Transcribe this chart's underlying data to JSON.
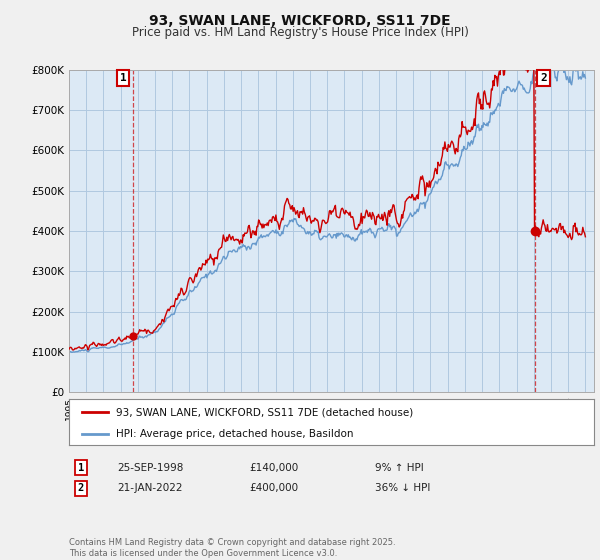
{
  "title": "93, SWAN LANE, WICKFORD, SS11 7DE",
  "subtitle": "Price paid vs. HM Land Registry's House Price Index (HPI)",
  "ylim": [
    0,
    800000
  ],
  "ytick_vals": [
    0,
    100000,
    200000,
    300000,
    400000,
    500000,
    600000,
    700000,
    800000
  ],
  "ytick_labels": [
    "£0",
    "£100K",
    "£200K",
    "£300K",
    "£400K",
    "£500K",
    "£600K",
    "£700K",
    "£800K"
  ],
  "hpi_color": "#6699cc",
  "price_color": "#cc0000",
  "vline_color": "#cc0000",
  "background_color": "#f0f0f0",
  "plot_bg_color": "#dce9f5",
  "grid_color": "#b0c8e0",
  "purchase1": {
    "date_num": 1998.73,
    "price": 140000,
    "label": "1",
    "date_str": "25-SEP-1998",
    "pct": "9% ↑ HPI"
  },
  "purchase2": {
    "date_num": 2022.06,
    "price": 400000,
    "label": "2",
    "date_str": "21-JAN-2022",
    "pct": "36% ↓ HPI"
  },
  "legend_label1": "93, SWAN LANE, WICKFORD, SS11 7DE (detached house)",
  "legend_label2": "HPI: Average price, detached house, Basildon",
  "footer": "Contains HM Land Registry data © Crown copyright and database right 2025.\nThis data is licensed under the Open Government Licence v3.0."
}
